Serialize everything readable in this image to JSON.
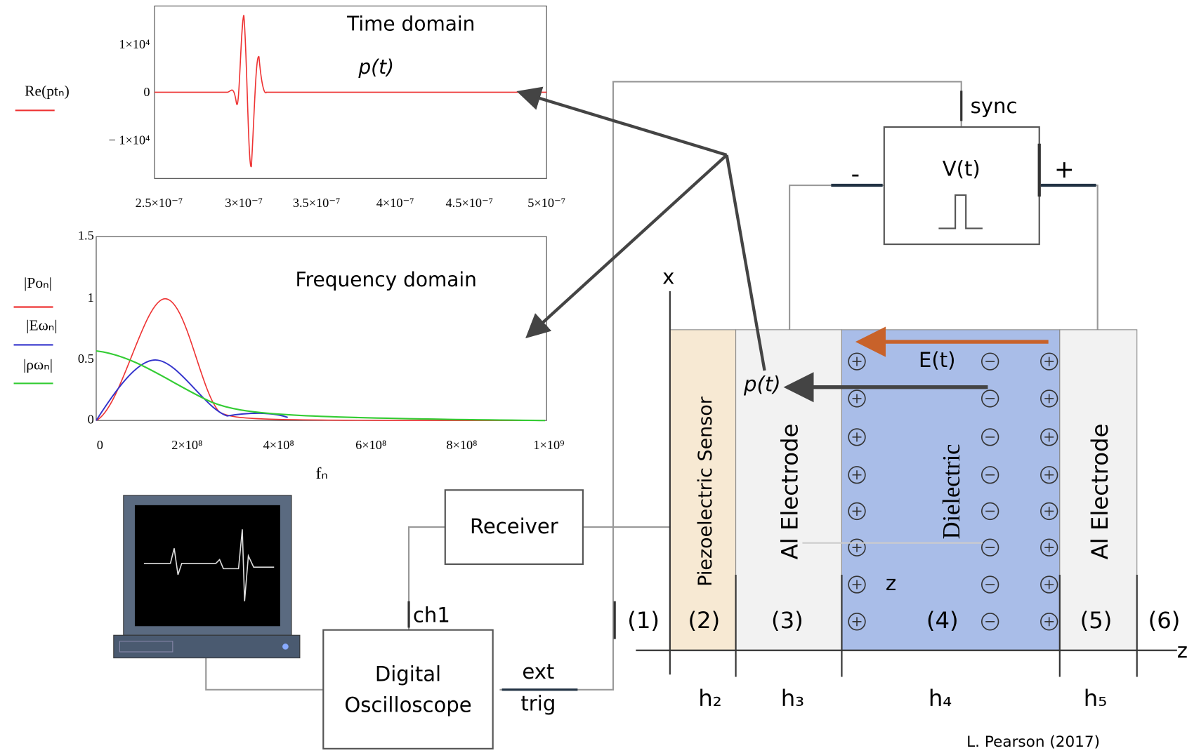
{
  "time_plot": {
    "title": "Time domain",
    "signal": "p(t)",
    "y_label": "Re(ptₙ)",
    "yticks": [
      "1×10⁴",
      "0",
      "− 1×10⁴"
    ],
    "xticks": [
      "2.5×10⁻⁷",
      "3×10⁻⁷",
      "3.5×10⁻⁷",
      "4×10⁻⁷",
      "4.5×10⁻⁷",
      "5×10⁻⁷"
    ]
  },
  "frequency_plot": {
    "title": "Frequency domain",
    "y_labels": [
      "|Poₙ|",
      "|Eωₙ|",
      "|ρωₙ|"
    ],
    "yticks": [
      "1.5",
      "1",
      "0.5",
      "0"
    ],
    "xticks": [
      "0",
      "2×10⁸",
      "4×10⁸",
      "6×10⁸",
      "8×10⁸",
      "1×10⁹"
    ],
    "x_label": "fₙ"
  },
  "circuit": {
    "sync": "sync",
    "source": "V(t)",
    "minus": "-",
    "plus": "+",
    "receiver": "Receiver",
    "ch1": "ch1",
    "oscilloscope": [
      "Digital",
      "Oscilloscope"
    ],
    "trigger": [
      "ext",
      "trig"
    ]
  },
  "sample": {
    "x_axis": "x",
    "z_axis": "z",
    "field": "E(t)",
    "pressure": "p(t)",
    "z_marker": "z",
    "layers": [
      "Piezoelectric Sensor",
      "Al Electrode",
      "Dielectric",
      "Al Electrode"
    ],
    "regions": [
      "(1)",
      "(2)",
      "(3)",
      "(4)",
      "(5)",
      "(6)"
    ],
    "thicknesses": [
      "h₂",
      "h₃",
      "h₄",
      "h₅"
    ]
  },
  "credit": "L. Pearson (2017)"
}
